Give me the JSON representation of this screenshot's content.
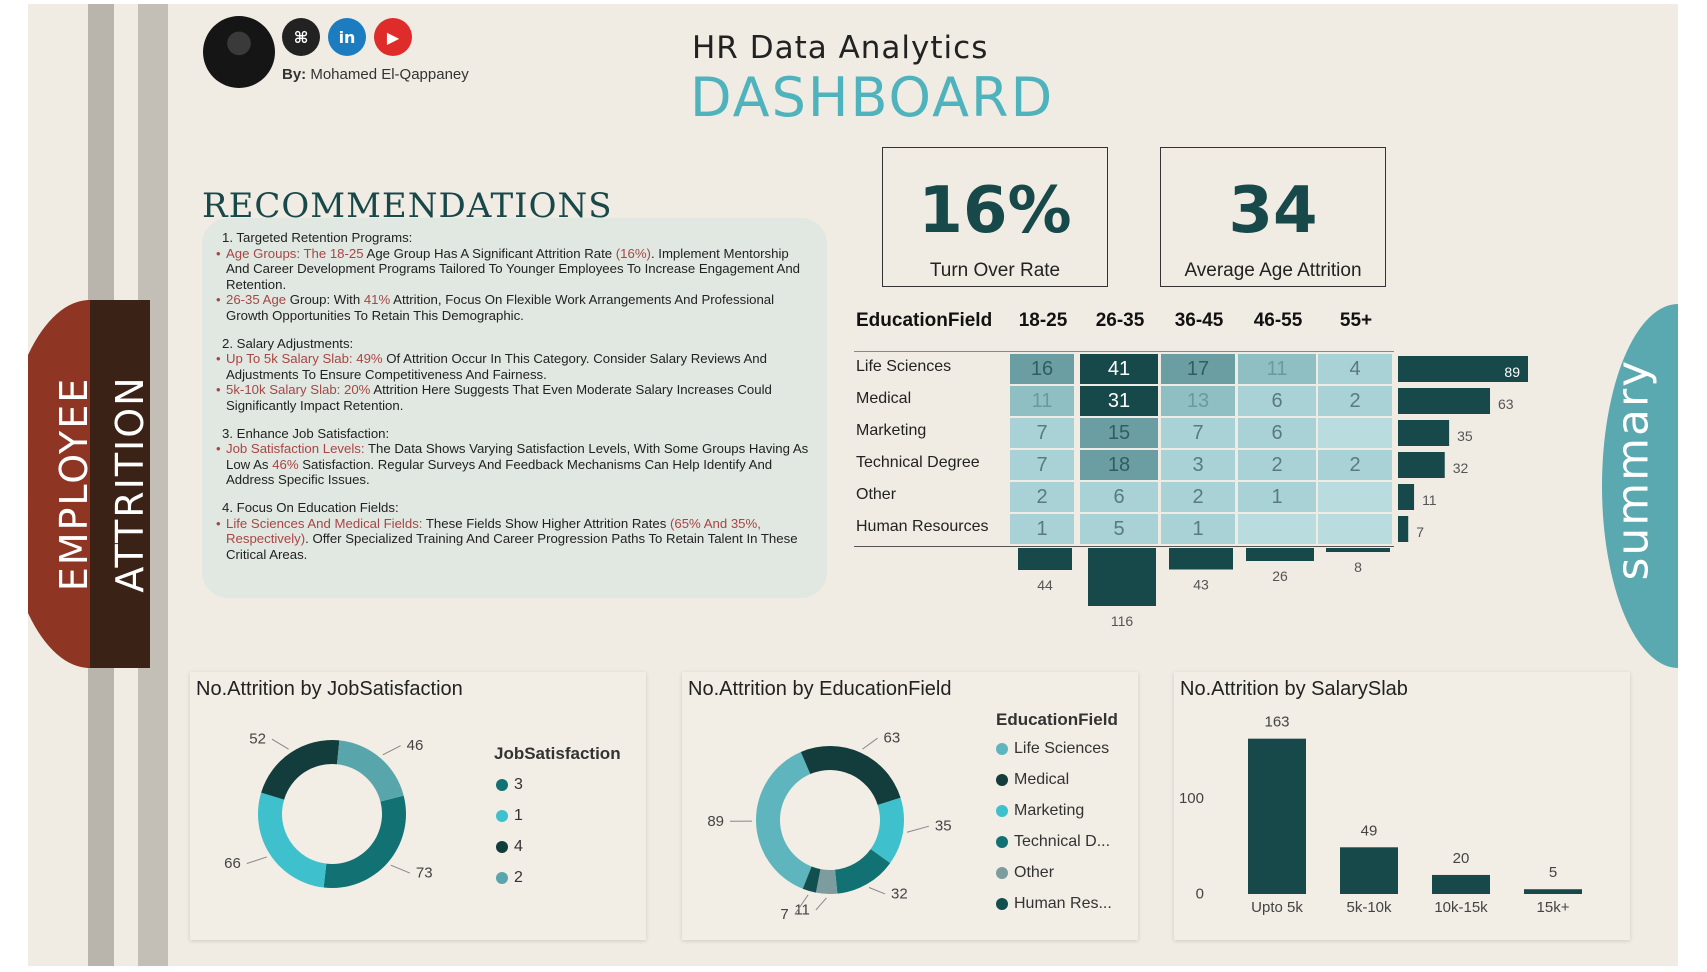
{
  "colors": {
    "background": "#f1ece3",
    "teal_dark": "#17484a",
    "teal_light": "#4eb3bc",
    "recommend_bg": "#e0e8e1",
    "rust": "#8f3524",
    "brown": "#3b2216",
    "red_highlight": "#a94545"
  },
  "header": {
    "by_label": "By:",
    "author": "Mohamed El-Qappaney",
    "icons": [
      "github-icon",
      "linkedin-icon",
      "youtube-icon"
    ],
    "title_line1": "HR Data Analytics",
    "title_line2": "DASHBOARD"
  },
  "side": {
    "employee": "EMPLOYEE",
    "attrition": "ATTRITION",
    "summary": "summary"
  },
  "recommendations": {
    "title": "RECOMMENDATIONS",
    "items": [
      {
        "head": "1. Targeted Retention Programs:",
        "bullets": [
          {
            "hl": "Age Groups: The 18-25",
            "text": " Age Group Has A Significant Attrition Rate ",
            "hl2": "(16%)",
            "text2": ". Implement Mentorship And Career Development Programs Tailored To Younger Employees To Increase Engagement And Retention."
          },
          {
            "hl": "26-35 Age",
            "text": " Group: With ",
            "hl2": "41%",
            "text2": " Attrition, Focus On Flexible Work Arrangements And Professional Growth Opportunities To Retain This Demographic."
          }
        ]
      },
      {
        "head": "2. Salary Adjustments:",
        "bullets": [
          {
            "hl": "Up To 5k Salary Slab: 49%",
            "text": " Of Attrition Occur In This Category. Consider Salary Reviews And Adjustments To Ensure Competitiveness And Fairness.",
            "hl2": "",
            "text2": ""
          },
          {
            "hl": "5k-10k Salary Slab: 20%",
            "text": " Attrition Here Suggests That Even Moderate Salary Increases Could Significantly Impact Retention.",
            "hl2": "",
            "text2": ""
          }
        ]
      },
      {
        "head": "3. Enhance Job Satisfaction:",
        "bullets": [
          {
            "hl": "Job Satisfaction Levels:",
            "text": " The Data Shows Varying Satisfaction Levels, With Some Groups Having As Low As ",
            "hl2": "46%",
            "text2": " Satisfaction. Regular Surveys And Feedback Mechanisms Can Help Identify And Address Specific Issues."
          }
        ]
      },
      {
        "head": "4. Focus On Education Fields:",
        "bullets": [
          {
            "hl": "Life Sciences And Medical Fields:",
            "text": " These Fields Show Higher Attrition Rates ",
            "hl2": "(65% And 35%, Respectively)",
            "text2": ". Offer Specialized Training And Career Progression Paths To Retain Talent In These Critical Areas."
          }
        ]
      }
    ]
  },
  "kpis": [
    {
      "value": "16%",
      "label": "Turn Over Rate"
    },
    {
      "value": "34",
      "label": "Average Age Attrition"
    }
  ],
  "matrix": {
    "row_header": "EducationField",
    "columns": [
      "18-25",
      "26-35",
      "36-45",
      "46-55",
      "55+"
    ],
    "rows": [
      {
        "label": "Life Sciences",
        "values": [
          "16",
          "41",
          "17",
          "11",
          "4"
        ],
        "total": "89"
      },
      {
        "label": "Medical",
        "values": [
          "11",
          "31",
          "13",
          "6",
          "2"
        ],
        "total": "63"
      },
      {
        "label": "Marketing",
        "values": [
          "7",
          "15",
          "7",
          "6",
          ""
        ],
        "total": "35"
      },
      {
        "label": "Technical Degree",
        "values": [
          "7",
          "18",
          "3",
          "2",
          "2"
        ],
        "total": "32"
      },
      {
        "label": "Other",
        "values": [
          "2",
          "6",
          "2",
          "1",
          ""
        ],
        "total": "11"
      },
      {
        "label": "Human Resources",
        "values": [
          "1",
          "5",
          "1",
          "",
          ""
        ],
        "total": "7"
      }
    ],
    "column_totals": [
      "44",
      "116",
      "43",
      "26",
      "8"
    ]
  },
  "chart_data": [
    {
      "type": "pie",
      "title": "No.Attrition by JobSatisfaction",
      "legend_title": "JobSatisfaction",
      "categories": [
        "3",
        "1",
        "4",
        "2"
      ],
      "values": [
        73,
        66,
        52,
        46
      ],
      "colors": [
        "#127173",
        "#3fc1cd",
        "#133c3c",
        "#58a6ab"
      ]
    },
    {
      "type": "pie",
      "title": "No.Attrition by EducationField",
      "legend_title": "EducationField",
      "categories": [
        "Life Sciences",
        "Medical",
        "Marketing",
        "Technical D...",
        "Other",
        "Human Res..."
      ],
      "values": [
        89,
        63,
        35,
        32,
        11,
        7
      ],
      "colors": [
        "#5fb5bd",
        "#133c3c",
        "#3fc1cd",
        "#127173",
        "#7c9c9f",
        "#12504f"
      ]
    },
    {
      "type": "bar",
      "title": "No.Attrition by SalarySlab",
      "categories": [
        "Upto 5k",
        "5k-10k",
        "10k-15k",
        "15k+"
      ],
      "values": [
        163,
        49,
        20,
        5
      ],
      "yticks": [
        "0",
        "100"
      ],
      "ylim": [
        0,
        170
      ]
    }
  ]
}
